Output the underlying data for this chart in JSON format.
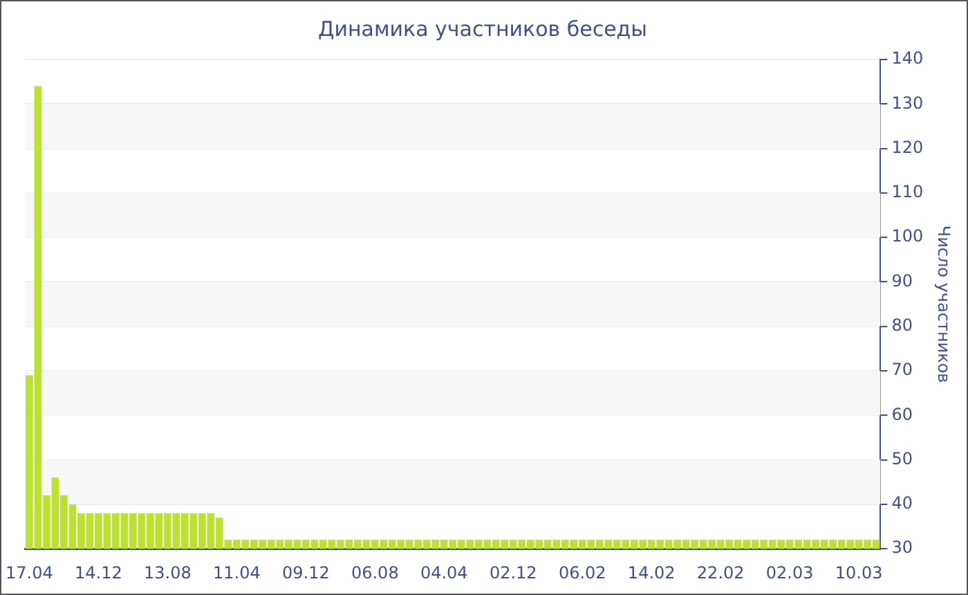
{
  "chart_data": {
    "type": "bar",
    "title": "Динамика участников беседы",
    "ylabel": "Число участников",
    "categories": [
      "17.04",
      null,
      null,
      null,
      null,
      null,
      null,
      null,
      "14.12",
      null,
      null,
      null,
      null,
      null,
      null,
      null,
      "13.08",
      null,
      null,
      null,
      null,
      null,
      null,
      null,
      "11.04",
      null,
      null,
      null,
      null,
      null,
      null,
      null,
      "09.12",
      null,
      null,
      null,
      null,
      null,
      null,
      null,
      "06.08",
      null,
      null,
      null,
      null,
      null,
      null,
      null,
      "04.04",
      null,
      null,
      null,
      null,
      null,
      null,
      null,
      "02.12",
      null,
      null,
      null,
      null,
      null,
      null,
      null,
      "06.02",
      null,
      null,
      null,
      null,
      null,
      null,
      null,
      "14.02",
      null,
      null,
      null,
      null,
      null,
      null,
      null,
      "22.02",
      null,
      null,
      null,
      null,
      null,
      null,
      null,
      "02.03",
      null,
      null,
      null,
      null,
      null,
      null,
      null,
      "10.03",
      null,
      null
    ],
    "values": [
      69,
      134,
      42,
      46,
      42,
      40,
      38,
      38,
      38,
      38,
      38,
      38,
      38,
      38,
      38,
      38,
      38,
      38,
      38,
      38,
      38,
      38,
      37,
      32,
      32,
      32,
      32,
      32,
      32,
      32,
      32,
      32,
      32,
      32,
      32,
      32,
      32,
      32,
      32,
      32,
      32,
      32,
      32,
      32,
      32,
      32,
      32,
      32,
      32,
      32,
      32,
      32,
      32,
      32,
      32,
      32,
      32,
      32,
      32,
      32,
      32,
      32,
      32,
      32,
      32,
      32,
      32,
      32,
      32,
      32,
      32,
      32,
      32,
      32,
      32,
      32,
      32,
      32,
      32,
      32,
      32,
      32,
      32,
      32,
      32,
      32,
      32,
      32,
      32,
      32,
      32,
      32,
      32,
      32,
      32,
      32,
      32,
      32,
      32
    ],
    "color": "#bde12f",
    "ylim": [
      30,
      140
    ],
    "yticks": [
      30,
      40,
      50,
      60,
      70,
      80,
      90,
      100,
      110,
      120,
      130,
      140
    ],
    "grid": "y",
    "legend": false
  }
}
